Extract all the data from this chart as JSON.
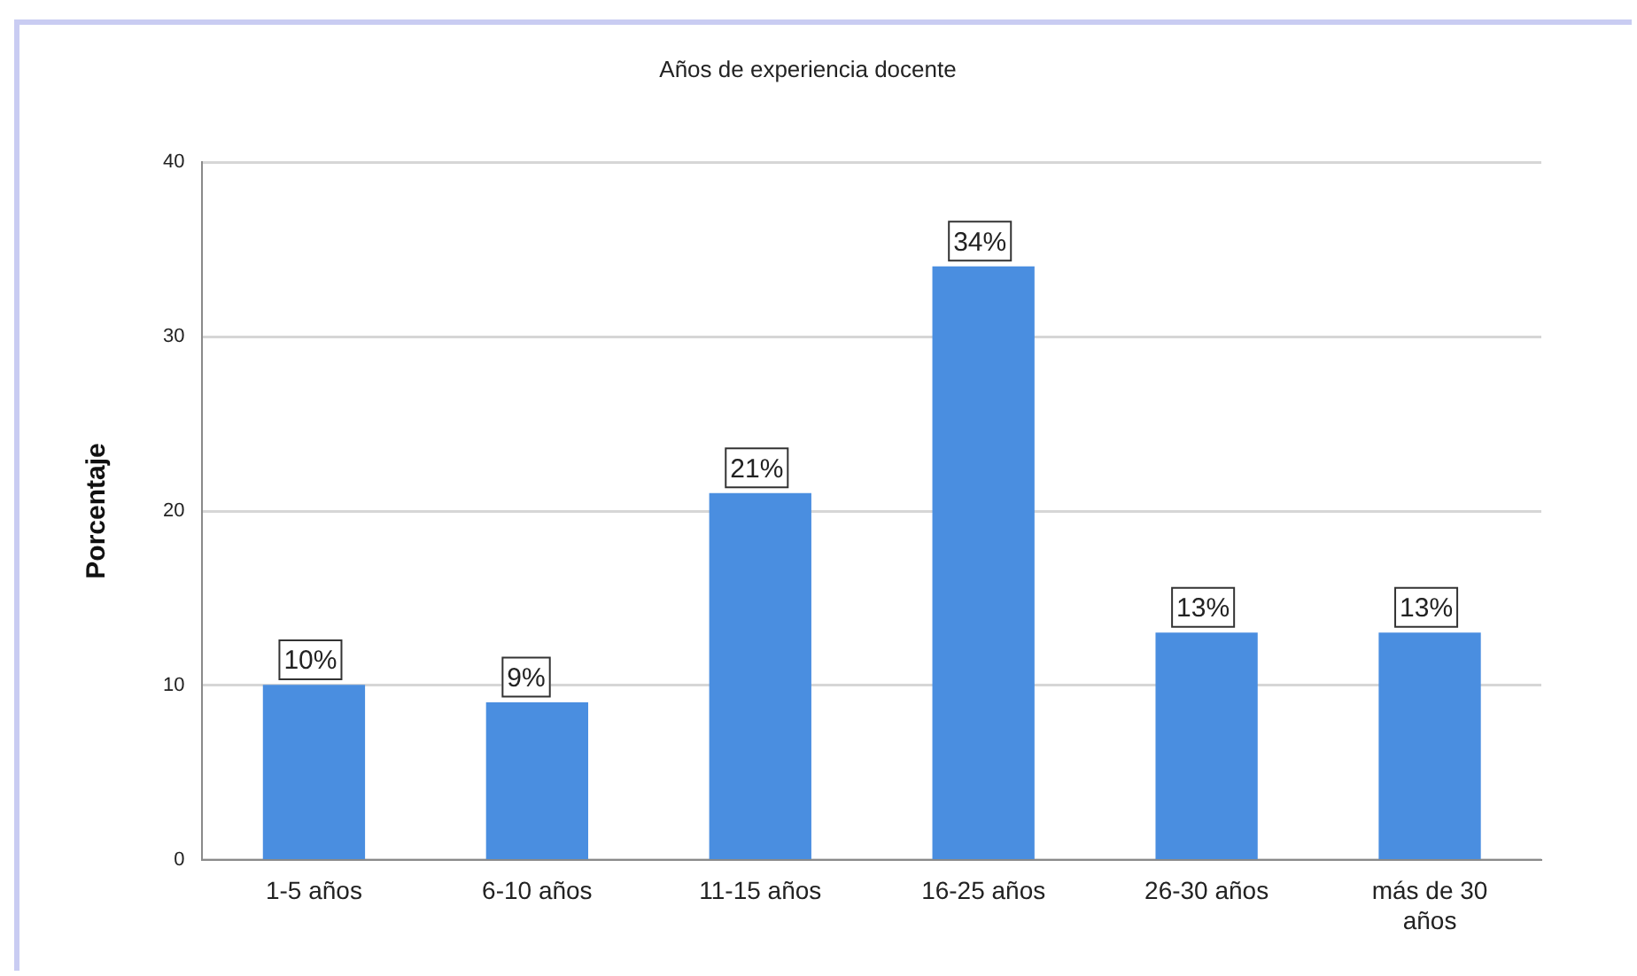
{
  "chart_data": {
    "type": "bar",
    "title": "Años de experiencia docente",
    "ylabel": "Porcentaje",
    "categories": [
      "1-5 años",
      "6-10 años",
      "11-15 años",
      "16-25 años",
      "26-30 años",
      "más de 30 años"
    ],
    "values": [
      10,
      9,
      21,
      34,
      13,
      13
    ],
    "value_labels": [
      "10%",
      "9%",
      "21%",
      "34%",
      "13%",
      "13%"
    ],
    "color": "#4a8ee0",
    "ylim": [
      0,
      40
    ],
    "yticks": [
      0,
      10,
      20,
      30,
      40
    ],
    "grid": "y"
  }
}
